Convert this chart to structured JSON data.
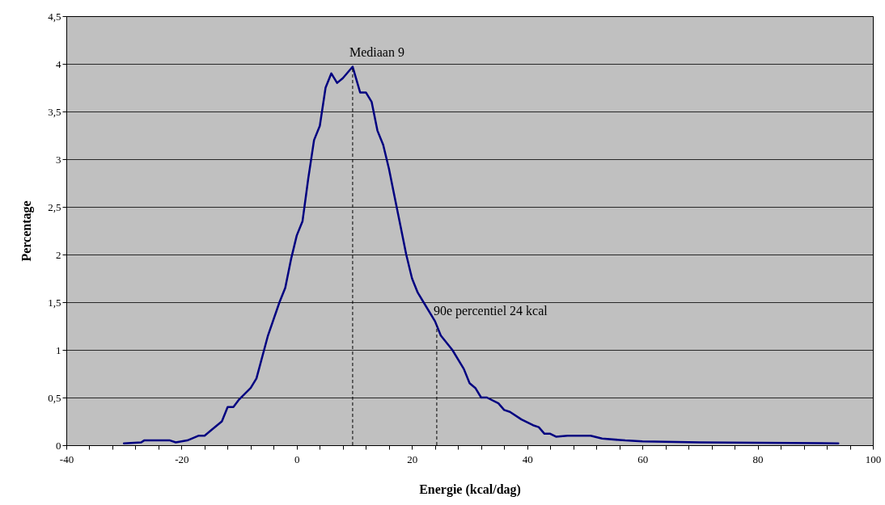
{
  "chart_data": {
    "type": "line",
    "xlabel": "Energie (kcal/dag)",
    "ylabel": "Percentage",
    "x": [
      -30,
      -27,
      -26.5,
      -22,
      -21,
      -19,
      -17,
      -16,
      -15,
      -13,
      -12,
      -11,
      -10,
      -8,
      -7,
      -5,
      -3,
      -2,
      -1,
      0,
      1,
      2,
      3,
      4,
      5,
      6,
      7,
      8,
      9.7,
      11,
      12,
      13,
      14,
      15,
      16,
      17,
      18,
      19,
      20,
      21,
      22,
      24,
      25,
      27,
      29,
      30,
      31,
      32,
      33,
      35,
      36,
      37,
      39,
      41,
      42,
      43,
      44,
      45,
      47,
      51,
      53,
      57,
      60,
      70,
      94
    ],
    "series": [
      {
        "color": "#000080",
        "values": [
          0.02,
          0.03,
          0.05,
          0.05,
          0.03,
          0.05,
          0.1,
          0.1,
          0.15,
          0.25,
          0.4,
          0.4,
          0.48,
          0.6,
          0.7,
          1.15,
          1.5,
          1.65,
          1.95,
          2.2,
          2.35,
          2.8,
          3.2,
          3.35,
          3.75,
          3.9,
          3.8,
          3.85,
          3.97,
          3.7,
          3.7,
          3.6,
          3.3,
          3.15,
          2.9,
          2.6,
          2.3,
          2.0,
          1.75,
          1.6,
          1.5,
          1.3,
          1.15,
          1.0,
          0.8,
          0.65,
          0.6,
          0.5,
          0.5,
          0.44,
          0.37,
          0.35,
          0.27,
          0.21,
          0.19,
          0.12,
          0.12,
          0.09,
          0.1,
          0.1,
          0.07,
          0.05,
          0.04,
          0.03,
          0.02
        ]
      }
    ],
    "xlim": [
      -40,
      100
    ],
    "xticks": [
      -40,
      {
        "value": -36,
        "label": null
      },
      {
        "value": -32,
        "label": null
      },
      {
        "value": -28,
        "label": null
      },
      {
        "value": -24,
        "label": null
      },
      -20,
      {
        "value": -16,
        "label": null
      },
      {
        "value": -12,
        "label": null
      },
      {
        "value": -8,
        "label": null
      },
      {
        "value": -4,
        "label": null
      },
      0,
      {
        "value": 4,
        "label": null
      },
      {
        "value": 8,
        "label": null
      },
      {
        "value": 12,
        "label": null
      },
      {
        "value": 16,
        "label": null
      },
      20,
      {
        "value": 24,
        "label": null
      },
      {
        "value": 28,
        "label": null
      },
      {
        "value": 32,
        "label": null
      },
      {
        "value": 36,
        "label": null
      },
      40,
      {
        "value": 44,
        "label": null
      },
      {
        "value": 48,
        "label": null
      },
      {
        "value": 52,
        "label": null
      },
      {
        "value": 56,
        "label": null
      },
      60,
      {
        "value": 64,
        "label": null
      },
      {
        "value": 68,
        "label": null
      },
      {
        "value": 72,
        "label": null
      },
      {
        "value": 76,
        "label": null
      },
      80,
      {
        "value": 84,
        "label": null
      },
      {
        "value": 88,
        "label": null
      },
      {
        "value": 92,
        "label": null
      },
      {
        "value": 96,
        "label": null
      },
      100
    ],
    "ylim": [
      0,
      4.5
    ],
    "yticks": [
      0,
      {
        "value": 0.5,
        "label": "0,5"
      },
      1,
      {
        "value": 1.5,
        "label": "1,5"
      },
      2,
      {
        "value": 2.5,
        "label": "2,5"
      },
      3,
      {
        "value": 3.5,
        "label": "3,5"
      },
      4,
      {
        "value": 4.5,
        "label": "4,5"
      }
    ],
    "grid": "y",
    "marker": "none",
    "line_style": "solid",
    "ref_lines": [
      {
        "axis": "x",
        "value": 9.7,
        "label": "Mediaan 9",
        "line_style": "dashed",
        "color": "#000000"
      },
      {
        "axis": "x",
        "value": 24.3,
        "label": "90e percentiel 24 kcal",
        "line_style": "dashed",
        "color": "#000000"
      }
    ]
  }
}
